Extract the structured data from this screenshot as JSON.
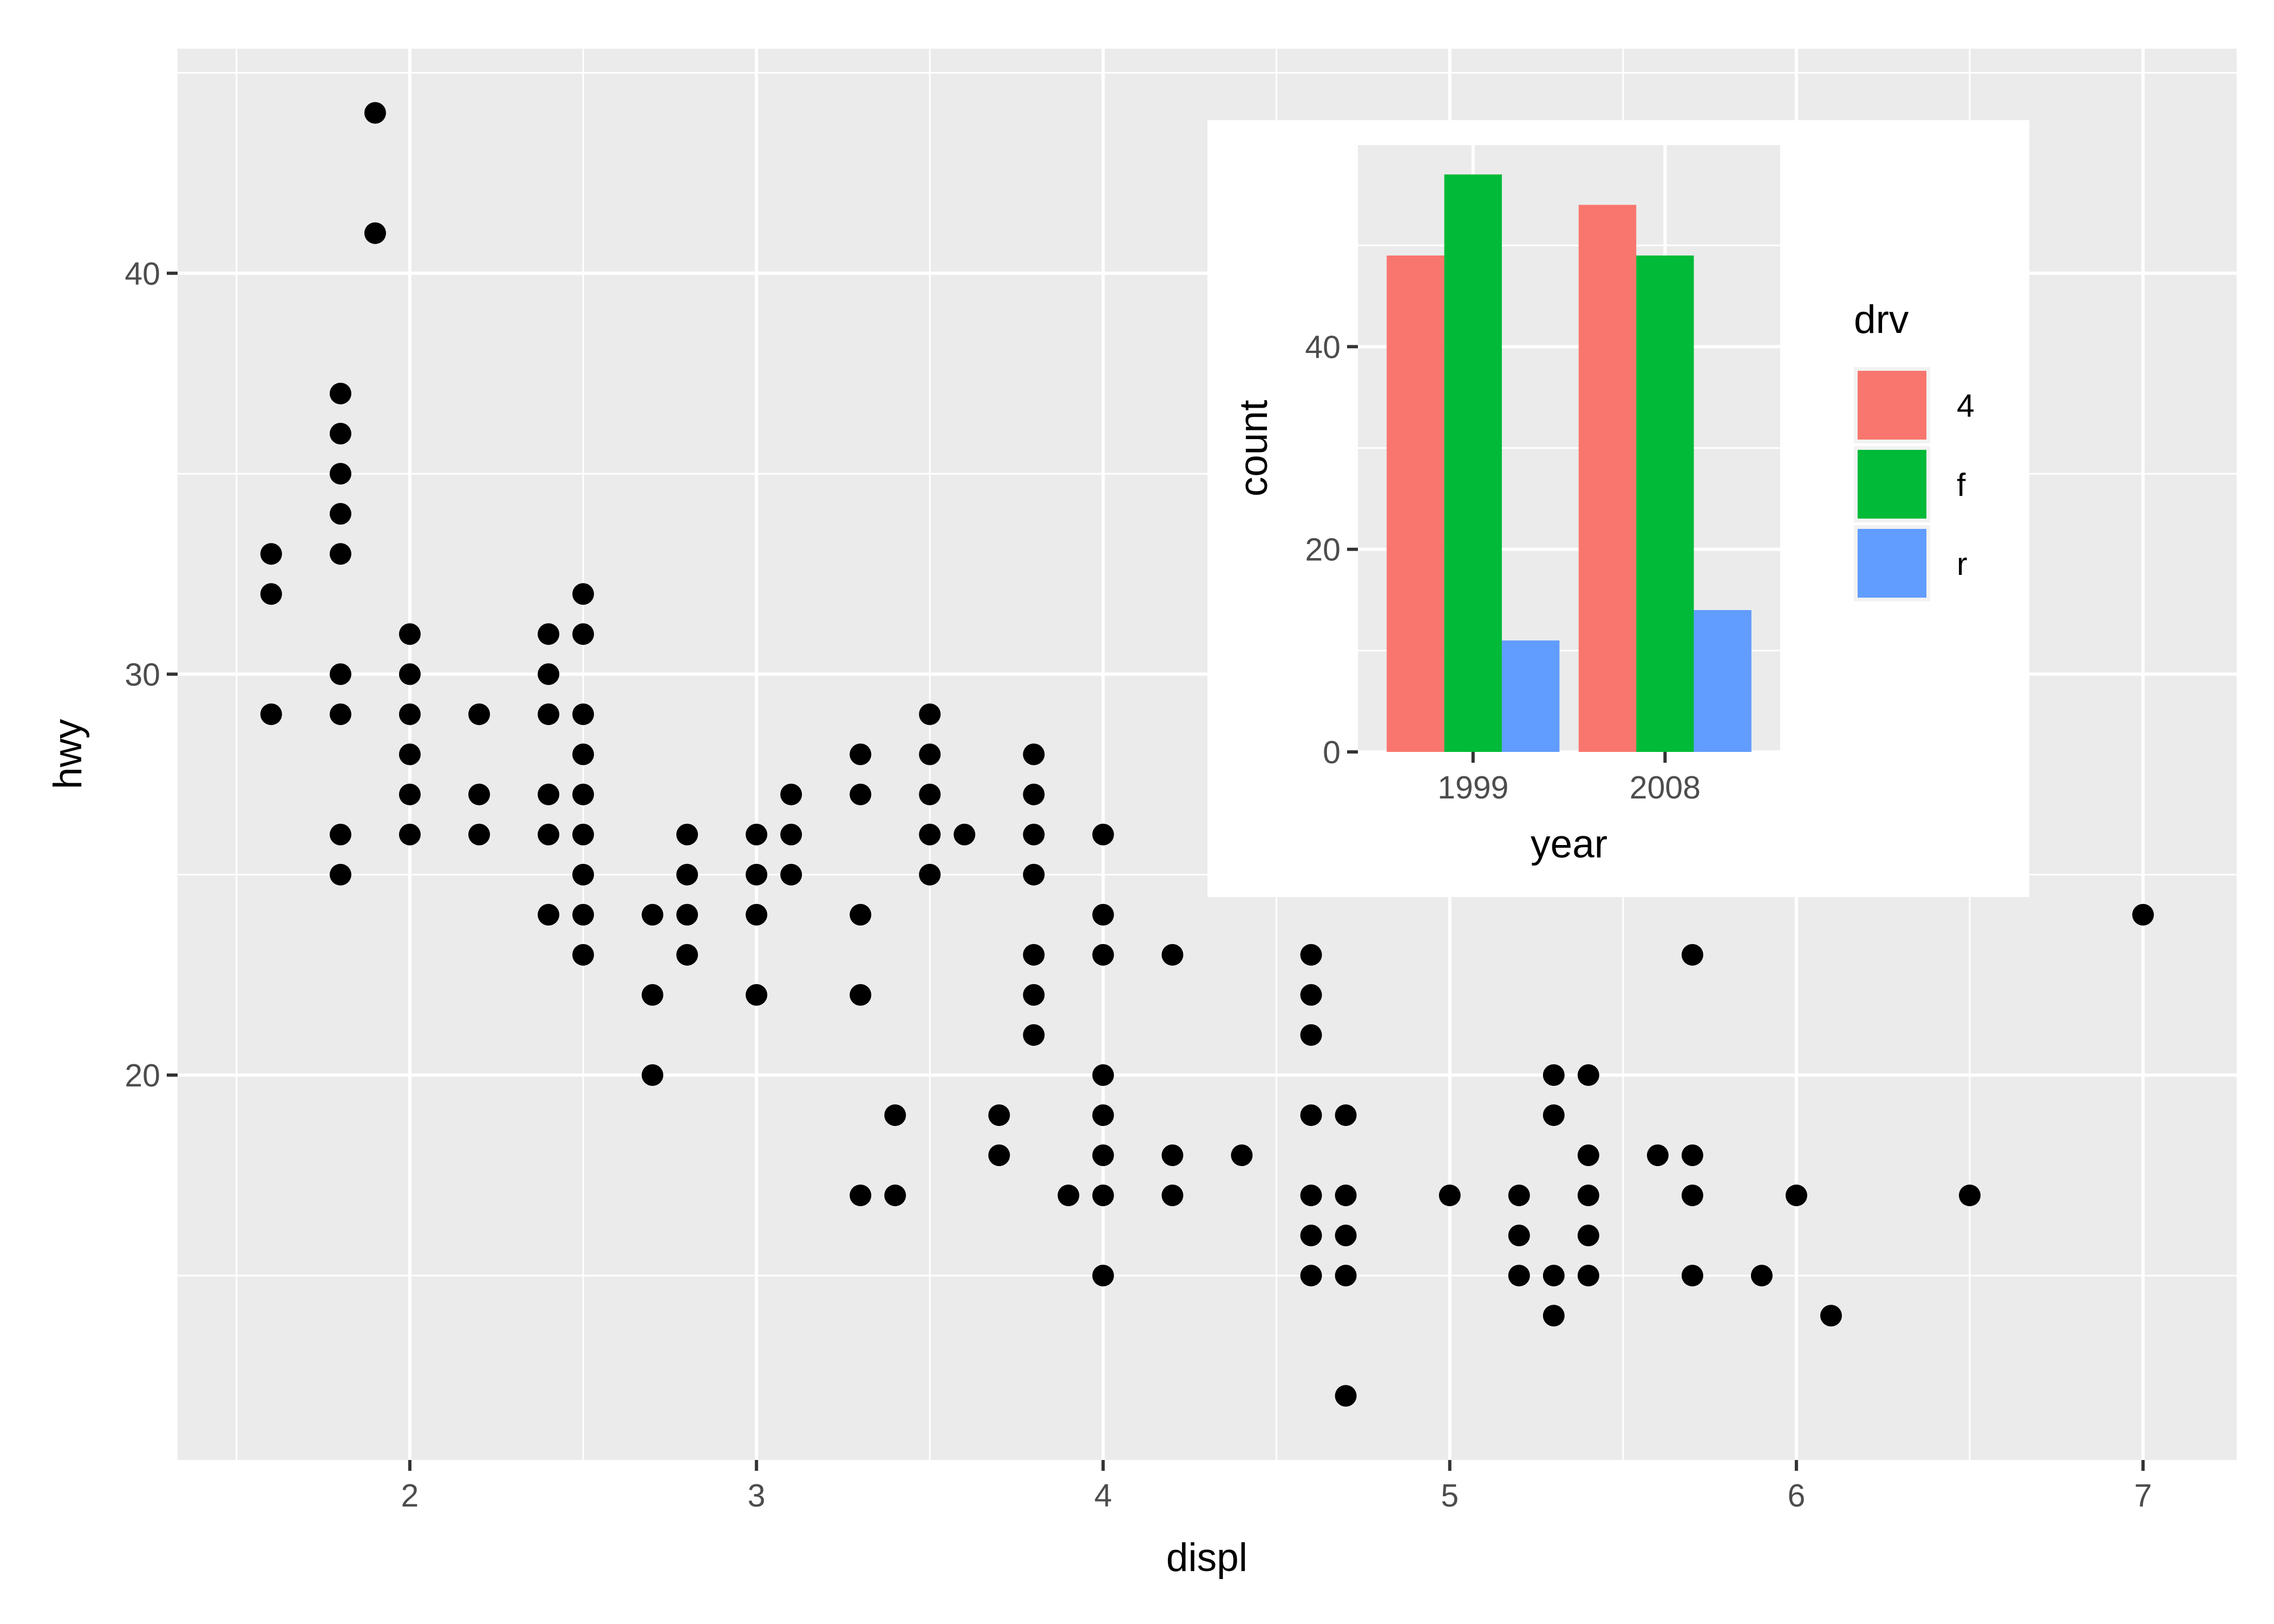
{
  "chart_data": [
    {
      "type": "scatter",
      "title": "",
      "xlabel": "displ",
      "ylabel": "hwy",
      "xlim": [
        1.33,
        7.27
      ],
      "ylim": [
        10.4,
        45.6
      ],
      "xticks": [
        2,
        3,
        4,
        5,
        6,
        7
      ],
      "yticks": [
        20,
        30,
        40
      ],
      "grid": true,
      "point_color": "#000000",
      "panel_color": "#ebebeb",
      "points": [
        [
          1.6,
          33
        ],
        [
          1.6,
          32
        ],
        [
          1.6,
          29
        ],
        [
          1.8,
          37
        ],
        [
          1.8,
          36
        ],
        [
          1.8,
          35
        ],
        [
          1.8,
          34
        ],
        [
          1.8,
          33
        ],
        [
          1.8,
          30
        ],
        [
          1.8,
          29
        ],
        [
          1.8,
          26
        ],
        [
          1.8,
          25
        ],
        [
          1.9,
          44
        ],
        [
          1.9,
          41
        ],
        [
          2.0,
          31
        ],
        [
          2.0,
          30
        ],
        [
          2.0,
          29
        ],
        [
          2.0,
          28
        ],
        [
          2.0,
          27
        ],
        [
          2.0,
          26
        ],
        [
          2.2,
          29
        ],
        [
          2.2,
          27
        ],
        [
          2.2,
          26
        ],
        [
          2.4,
          31
        ],
        [
          2.4,
          30
        ],
        [
          2.4,
          29
        ],
        [
          2.4,
          27
        ],
        [
          2.4,
          26
        ],
        [
          2.4,
          24
        ],
        [
          2.5,
          32
        ],
        [
          2.5,
          31
        ],
        [
          2.5,
          29
        ],
        [
          2.5,
          28
        ],
        [
          2.5,
          27
        ],
        [
          2.5,
          26
        ],
        [
          2.5,
          25
        ],
        [
          2.5,
          24
        ],
        [
          2.5,
          23
        ],
        [
          2.7,
          24
        ],
        [
          2.7,
          22
        ],
        [
          2.7,
          20
        ],
        [
          2.8,
          26
        ],
        [
          2.8,
          25
        ],
        [
          2.8,
          24
        ],
        [
          2.8,
          23
        ],
        [
          3.0,
          26
        ],
        [
          3.0,
          25
        ],
        [
          3.0,
          24
        ],
        [
          3.0,
          22
        ],
        [
          3.1,
          27
        ],
        [
          3.1,
          26
        ],
        [
          3.1,
          25
        ],
        [
          3.3,
          28
        ],
        [
          3.3,
          27
        ],
        [
          3.3,
          24
        ],
        [
          3.3,
          22
        ],
        [
          3.3,
          17
        ],
        [
          3.4,
          19
        ],
        [
          3.4,
          17
        ],
        [
          3.5,
          29
        ],
        [
          3.5,
          28
        ],
        [
          3.5,
          27
        ],
        [
          3.5,
          26
        ],
        [
          3.5,
          25
        ],
        [
          3.6,
          26
        ],
        [
          3.7,
          19
        ],
        [
          3.7,
          18
        ],
        [
          3.8,
          28
        ],
        [
          3.8,
          27
        ],
        [
          3.8,
          26
        ],
        [
          3.8,
          25
        ],
        [
          3.8,
          23
        ],
        [
          3.8,
          22
        ],
        [
          3.8,
          21
        ],
        [
          3.9,
          17
        ],
        [
          4.0,
          26
        ],
        [
          4.0,
          24
        ],
        [
          4.0,
          23
        ],
        [
          4.0,
          20
        ],
        [
          4.0,
          19
        ],
        [
          4.0,
          18
        ],
        [
          4.0,
          17
        ],
        [
          4.0,
          15
        ],
        [
          4.2,
          23
        ],
        [
          4.2,
          18
        ],
        [
          4.2,
          17
        ],
        [
          4.4,
          18
        ],
        [
          4.6,
          23
        ],
        [
          4.6,
          22
        ],
        [
          4.6,
          21
        ],
        [
          4.6,
          19
        ],
        [
          4.6,
          17
        ],
        [
          4.6,
          16
        ],
        [
          4.6,
          15
        ],
        [
          4.7,
          19
        ],
        [
          4.7,
          17
        ],
        [
          4.7,
          16
        ],
        [
          4.7,
          15
        ],
        [
          4.7,
          12
        ],
        [
          5.0,
          17
        ],
        [
          5.2,
          17
        ],
        [
          5.2,
          16
        ],
        [
          5.2,
          15
        ],
        [
          5.3,
          20
        ],
        [
          5.3,
          19
        ],
        [
          5.3,
          15
        ],
        [
          5.3,
          14
        ],
        [
          5.4,
          20
        ],
        [
          5.4,
          18
        ],
        [
          5.4,
          17
        ],
        [
          5.4,
          16
        ],
        [
          5.4,
          15
        ],
        [
          5.6,
          18
        ],
        [
          5.7,
          23
        ],
        [
          5.7,
          18
        ],
        [
          5.7,
          17
        ],
        [
          5.7,
          15
        ],
        [
          5.9,
          15
        ],
        [
          6.0,
          17
        ],
        [
          6.1,
          14
        ],
        [
          6.5,
          17
        ],
        [
          7.0,
          24
        ]
      ]
    },
    {
      "type": "bar",
      "title": "",
      "xlabel": "year",
      "ylabel": "count",
      "categories": [
        "1999",
        "2008"
      ],
      "ylim": [
        0,
        59.9
      ],
      "yticks": [
        0,
        20,
        40
      ],
      "grid": true,
      "legend": {
        "title": "drv",
        "placement": "right"
      },
      "series": [
        {
          "name": "4",
          "color": "#f8766d",
          "values": [
            49,
            54
          ]
        },
        {
          "name": "f",
          "color": "#00ba38",
          "values": [
            57,
            49
          ]
        },
        {
          "name": "r",
          "color": "#619cff",
          "values": [
            11,
            14
          ]
        }
      ]
    }
  ]
}
